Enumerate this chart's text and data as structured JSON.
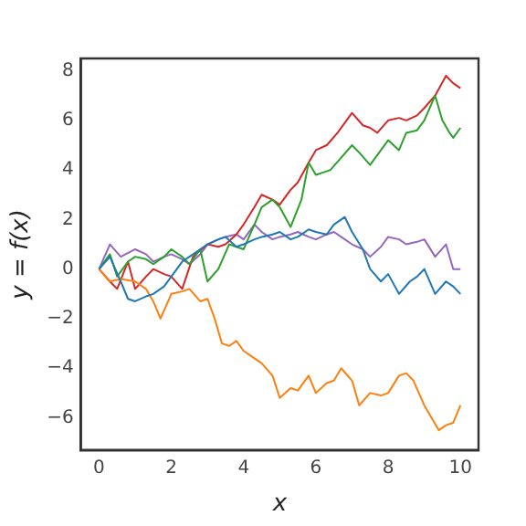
{
  "chart_data": {
    "type": "line",
    "xlabel": "x",
    "ylabel": "y = f(x)",
    "grid": false,
    "legend": false,
    "marker": "none",
    "line_style": "solid",
    "xlim": [
      -0.5,
      10.5
    ],
    "ylim": [
      -7.3,
      8.5
    ],
    "xticks": [
      0,
      2,
      4,
      6,
      8,
      10
    ],
    "yticks": [
      -6,
      -4,
      -2,
      0,
      2,
      4,
      6,
      8
    ],
    "series": [
      {
        "color": "#1f77b4",
        "x": [
          0,
          0.3,
          0.6,
          0.8,
          1,
          1.3,
          1.5,
          1.8,
          2,
          2.3,
          2.5,
          2.8,
          3,
          3.3,
          3.5,
          3.8,
          4,
          4.3,
          4.5,
          4.8,
          5,
          5.3,
          5.5,
          5.8,
          6,
          6.3,
          6.5,
          6.8,
          7,
          7.3,
          7.5,
          7.8,
          8,
          8.3,
          8.6,
          8.8,
          9,
          9.3,
          9.6,
          9.8,
          10
        ],
        "values": [
          0,
          0.5,
          -0.5,
          -1.2,
          -1.3,
          -1.1,
          -1,
          -0.7,
          -0.3,
          0.3,
          0.5,
          0.8,
          1,
          1.2,
          1.3,
          0.9,
          1,
          1.2,
          1.3,
          1.4,
          1.5,
          1.2,
          1.3,
          1.6,
          1.5,
          1.4,
          1.8,
          2.1,
          1.5,
          0.8,
          0,
          -0.5,
          -0.2,
          -1,
          -0.5,
          -0.3,
          0,
          -1,
          -0.5,
          -0.7,
          -1
        ]
      },
      {
        "color": "#ff7f0e",
        "x": [
          0,
          0.3,
          0.6,
          1,
          1.3,
          1.5,
          1.7,
          2,
          2.3,
          2.5,
          2.8,
          3,
          3.2,
          3.4,
          3.6,
          3.8,
          4,
          4.3,
          4.5,
          4.8,
          5,
          5.3,
          5.5,
          5.8,
          6,
          6.3,
          6.5,
          6.7,
          7,
          7.2,
          7.5,
          7.8,
          8,
          8.3,
          8.5,
          8.7,
          9,
          9.2,
          9.4,
          9.6,
          9.8,
          10
        ],
        "values": [
          0,
          -0.5,
          -0.4,
          -0.5,
          -0.8,
          -1.3,
          -2,
          -1,
          -0.9,
          -0.8,
          -1.3,
          -1.2,
          -2,
          -3,
          -3.1,
          -2.9,
          -3.3,
          -3.6,
          -3.8,
          -4.3,
          -5.2,
          -4.8,
          -4.9,
          -4.3,
          -5,
          -4.6,
          -4.5,
          -4,
          -4.5,
          -5.5,
          -5,
          -5.1,
          -5,
          -4.3,
          -4.2,
          -4.5,
          -5.5,
          -6,
          -6.5,
          -6.3,
          -6.2,
          -5.5
        ]
      },
      {
        "color": "#2ca02c",
        "x": [
          0,
          0.3,
          0.5,
          0.8,
          1,
          1.3,
          1.5,
          1.8,
          2,
          2.3,
          2.5,
          2.8,
          3,
          3.3,
          3.6,
          4,
          4.3,
          4.5,
          4.8,
          5,
          5.3,
          5.6,
          5.8,
          6,
          6.2,
          6.4,
          6.7,
          7,
          7.2,
          7.5,
          7.8,
          8,
          8.3,
          8.5,
          8.8,
          9,
          9.3,
          9.5,
          9.7,
          9.8,
          10
        ],
        "values": [
          0,
          0.6,
          -0.3,
          0.3,
          0.5,
          0.4,
          0.2,
          0.5,
          0.8,
          0.5,
          0.2,
          0.8,
          -0.5,
          0,
          1,
          0.8,
          1.8,
          2.5,
          2.8,
          2.5,
          1.7,
          2.8,
          4.3,
          3.8,
          3.9,
          4,
          4.5,
          5,
          4.7,
          4.2,
          4.8,
          5.2,
          4.8,
          5.5,
          5.6,
          6,
          7,
          6,
          5.5,
          5.3,
          5.7
        ]
      },
      {
        "color": "#d62728",
        "x": [
          0,
          0.3,
          0.5,
          0.8,
          1,
          1.3,
          1.5,
          1.8,
          2,
          2.3,
          2.6,
          3,
          3.3,
          3.5,
          3.8,
          4,
          4.3,
          4.5,
          4.8,
          5,
          5.3,
          5.5,
          5.8,
          6,
          6.3,
          6.6,
          7,
          7.3,
          7.5,
          7.7,
          8,
          8.3,
          8.5,
          8.8,
          9,
          9.3,
          9.6,
          9.8,
          10
        ],
        "values": [
          0,
          -0.5,
          -0.8,
          0.3,
          -0.8,
          -0.3,
          0,
          -0.2,
          -0.3,
          -0.8,
          0.5,
          1,
          0.9,
          1,
          1.4,
          1.8,
          2.5,
          3,
          2.8,
          2.6,
          3.2,
          3.5,
          4.3,
          4.8,
          5,
          5.5,
          6.3,
          5.8,
          5.7,
          5.5,
          6,
          6.1,
          6,
          6.2,
          6.5,
          7,
          7.8,
          7.5,
          7.3
        ]
      },
      {
        "color": "#9467bd",
        "x": [
          0,
          0.3,
          0.6,
          1,
          1.3,
          1.5,
          1.8,
          2,
          2.3,
          2.5,
          2.8,
          3,
          3.3,
          3.5,
          3.8,
          4,
          4.3,
          4.5,
          4.8,
          5,
          5.3,
          5.5,
          5.8,
          6,
          6.3,
          6.5,
          6.8,
          7,
          7.3,
          7.5,
          7.8,
          8,
          8.3,
          8.5,
          8.8,
          9,
          9.3,
          9.6,
          9.8,
          10
        ],
        "values": [
          0,
          1,
          0.5,
          0.8,
          0.6,
          0.3,
          0.5,
          0.6,
          0.4,
          0.2,
          0.6,
          1,
          1.2,
          1.3,
          1.4,
          1.2,
          1.8,
          1.5,
          1.2,
          1.3,
          1.4,
          1.5,
          1.3,
          1.2,
          1.4,
          1.5,
          1.2,
          1,
          0.8,
          0.5,
          0.9,
          1.3,
          1.2,
          1,
          1.1,
          1.2,
          0.5,
          1,
          0,
          0
        ]
      }
    ]
  }
}
